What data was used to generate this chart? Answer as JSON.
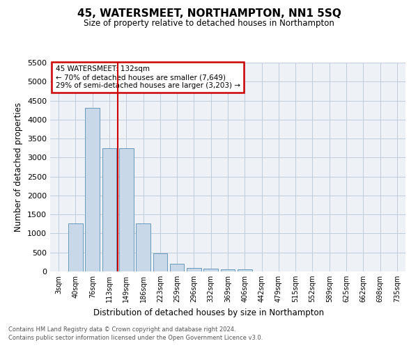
{
  "title": "45, WATERSMEET, NORTHAMPTON, NN1 5SQ",
  "subtitle": "Size of property relative to detached houses in Northampton",
  "xlabel": "Distribution of detached houses by size in Northampton",
  "ylabel": "Number of detached properties",
  "categories": [
    "3sqm",
    "40sqm",
    "76sqm",
    "113sqm",
    "149sqm",
    "186sqm",
    "223sqm",
    "259sqm",
    "296sqm",
    "332sqm",
    "369sqm",
    "406sqm",
    "442sqm",
    "479sqm",
    "515sqm",
    "552sqm",
    "589sqm",
    "625sqm",
    "662sqm",
    "698sqm",
    "735sqm"
  ],
  "values": [
    0,
    1270,
    4300,
    3250,
    3250,
    1270,
    480,
    195,
    90,
    70,
    55,
    50,
    0,
    0,
    0,
    0,
    0,
    0,
    0,
    0,
    0
  ],
  "bar_color": "#c8d8e8",
  "bar_edge_color": "#6699bb",
  "red_line_x": 3.5,
  "annotation_title": "45 WATERSMEET: 132sqm",
  "annotation_line1": "← 70% of detached houses are smaller (7,649)",
  "annotation_line2": "29% of semi-detached houses are larger (3,203) →",
  "annotation_box_color": "#ffffff",
  "annotation_box_edge": "#cc0000",
  "red_line_color": "#cc0000",
  "grid_color": "#c0ccdd",
  "background_color": "#eef2f7",
  "ylim": [
    0,
    5500
  ],
  "yticks": [
    0,
    500,
    1000,
    1500,
    2000,
    2500,
    3000,
    3500,
    4000,
    4500,
    5000,
    5500
  ],
  "footer_line1": "Contains HM Land Registry data © Crown copyright and database right 2024.",
  "footer_line2": "Contains public sector information licensed under the Open Government Licence v3.0."
}
